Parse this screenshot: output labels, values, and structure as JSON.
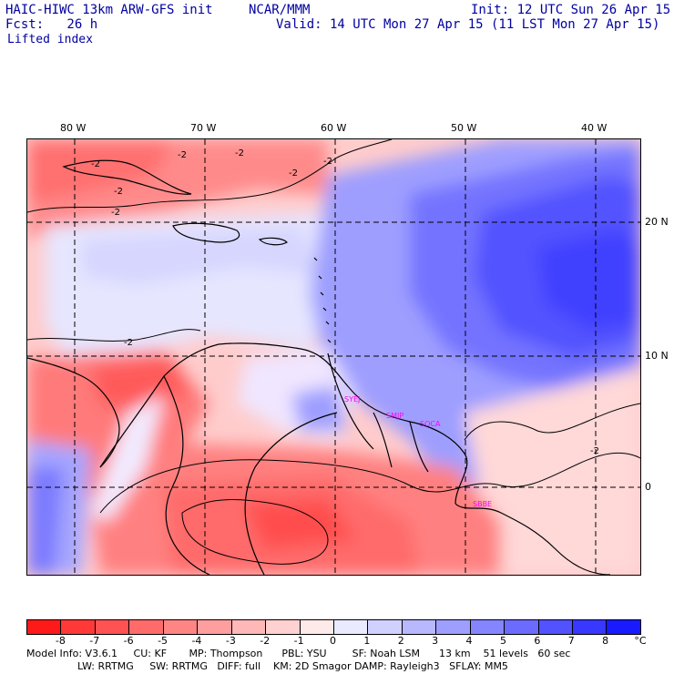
{
  "header": {
    "model_title": "HAIC-HIWC 13km ARW-GFS init",
    "org": "NCAR/MMM",
    "init": "Init: 12 UTC Sun 26 Apr 15",
    "fcst": "Fcst:   26 h",
    "valid": "Valid: 14 UTC Mon 27 Apr 15 (11 LST Mon 27 Apr 15)",
    "field": "Lifted index"
  },
  "map": {
    "lon_labels": [
      "80 W",
      "70 W",
      "60 W",
      "50 W",
      "40 W"
    ],
    "lat_labels": [
      "20 N",
      "10 N",
      "0"
    ],
    "contour_labels": [
      "-2",
      "-2",
      "-2",
      "-2",
      "-2",
      "-2",
      "-2",
      "-2",
      "-2"
    ],
    "stations": [
      "SYEJ",
      "SMJP",
      "SOCA",
      "SBBE"
    ],
    "station_color": "#ff00ff"
  },
  "colorbar": {
    "tick_labels": [
      "-8",
      "-7",
      "-6",
      "-5",
      "-4",
      "-3",
      "-2",
      "-1",
      "0",
      "1",
      "2",
      "3",
      "4",
      "5",
      "6",
      "7",
      "8"
    ],
    "unit": "°C",
    "colors": [
      "#ff1a1a",
      "#ff3838",
      "#ff5252",
      "#ff6b6b",
      "#ff8585",
      "#ff9e9e",
      "#ffb8b8",
      "#ffd1d1",
      "#ffeaea",
      "#eaeaff",
      "#d1d1ff",
      "#b8b8ff",
      "#9e9eff",
      "#8585ff",
      "#6b6bff",
      "#5252ff",
      "#3838ff",
      "#1a1aff"
    ]
  },
  "footer": {
    "line1": "Model Info: V3.6.1     CU: KF       MP: Thompson      PBL: YSU        SF: Noah LSM      13 km    51 levels   60 sec",
    "line2": "                LW: RRTMG     SW: RRTMG   DIFF: full    KM: 2D Smagor DAMP: Rayleigh3   SFLAY: MM5"
  }
}
